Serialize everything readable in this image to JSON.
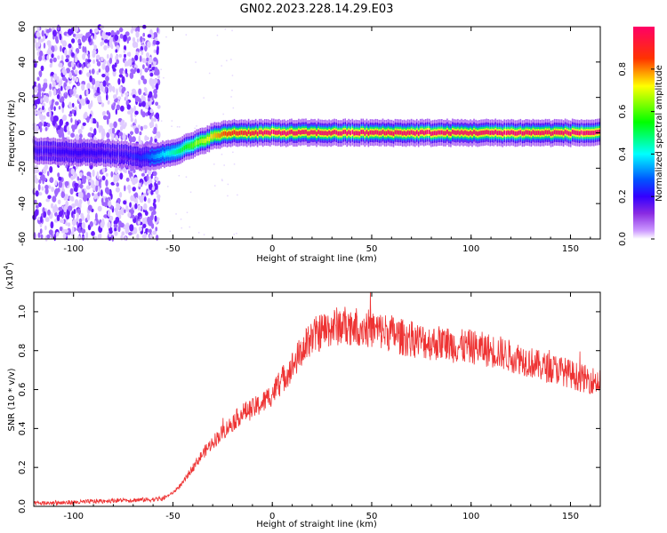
{
  "title": "GN02.2023.228.14.29.E03",
  "chart_data": [
    {
      "type": "heatmap",
      "xlabel": "Height of straight line (km)",
      "ylabel": "Frequency (Hz)",
      "xlim": [
        -120,
        165
      ],
      "ylim": [
        -60,
        60
      ],
      "x_ticks": [
        -100,
        -50,
        0,
        50,
        100,
        150
      ],
      "y_ticks": [
        -60,
        -40,
        -20,
        0,
        20,
        40,
        60
      ],
      "colorbar": {
        "label": "Normalized spectral amplitude",
        "range": [
          0,
          1
        ],
        "ticks": [
          0.0,
          0.2,
          0.4,
          0.6,
          0.8
        ],
        "colormap": [
          "#ffffff",
          "#cc99ff",
          "#8a2be2",
          "#3300ff",
          "#0033ff",
          "#00ffff",
          "#00ff00",
          "#ffff00",
          "#ff0000",
          "#ff0066"
        ]
      },
      "ridge": {
        "description_points_x": [
          -120,
          -75,
          -65,
          -58,
          -50,
          -40,
          -30,
          -20,
          0,
          40,
          100,
          165
        ],
        "frequency_hz": [
          -10,
          -12,
          -14,
          -13,
          -11,
          -7,
          -2,
          0,
          0,
          0,
          0,
          0
        ],
        "amplitude": [
          0.2,
          0.2,
          0.25,
          0.35,
          0.45,
          0.6,
          0.75,
          0.9,
          1.0,
          1.0,
          1.0,
          1.0
        ]
      },
      "noise_region_x": [
        -120,
        -57
      ]
    },
    {
      "type": "line",
      "xlabel": "Height of straight line (km)",
      "ylabel": "SNR (10 * v/v)",
      "y_multiplier": "(x10",
      "y_multiplier_exp": "4",
      "y_multiplier_close": ")",
      "xlim": [
        -120,
        165
      ],
      "ylim": [
        0,
        1.1
      ],
      "x_ticks": [
        -100,
        -50,
        0,
        50,
        100,
        150
      ],
      "y_ticks": [
        0.0,
        0.2,
        0.4,
        0.6,
        0.8,
        1.0
      ],
      "series": [
        {
          "color": "#ee3333",
          "x": [
            -120,
            -100,
            -80,
            -60,
            -55,
            -50,
            -45,
            -40,
            -35,
            -30,
            -25,
            -20,
            -15,
            -10,
            -5,
            0,
            5,
            10,
            15,
            20,
            25,
            30,
            35,
            40,
            45,
            50,
            55,
            60,
            65,
            70,
            75,
            80,
            85,
            90,
            95,
            100,
            105,
            110,
            115,
            120,
            125,
            130,
            135,
            140,
            145,
            150,
            155,
            160,
            165
          ],
          "y": [
            0.015,
            0.02,
            0.03,
            0.035,
            0.04,
            0.07,
            0.12,
            0.2,
            0.27,
            0.33,
            0.38,
            0.43,
            0.48,
            0.5,
            0.53,
            0.58,
            0.65,
            0.72,
            0.8,
            0.87,
            0.9,
            0.92,
            0.93,
            0.93,
            0.92,
            0.91,
            0.9,
            0.89,
            0.87,
            0.86,
            0.85,
            0.84,
            0.84,
            0.83,
            0.82,
            0.82,
            0.81,
            0.8,
            0.79,
            0.77,
            0.76,
            0.74,
            0.72,
            0.71,
            0.7,
            0.68,
            0.66,
            0.65,
            0.64
          ]
        }
      ]
    }
  ]
}
